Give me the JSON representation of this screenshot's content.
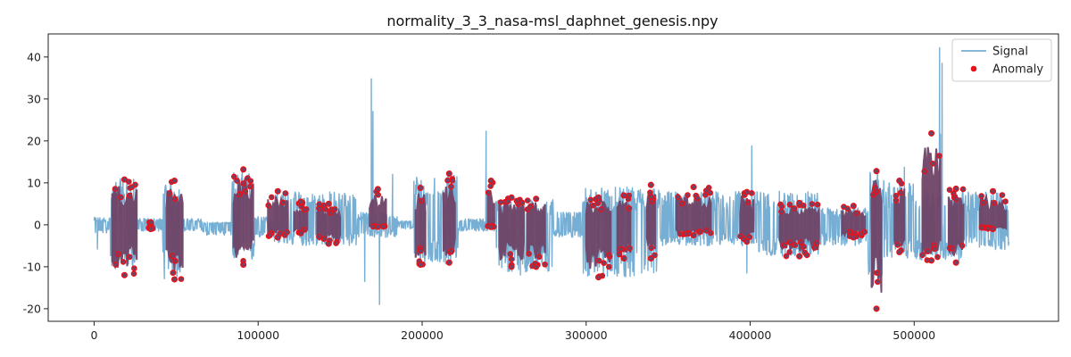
{
  "chart_data": {
    "type": "line",
    "title": "normality_3_3_nasa-msl_daphnet_genesis.npy",
    "xlabel": "",
    "ylabel": "",
    "xlim": [
      -28000,
      588000
    ],
    "ylim": [
      -23,
      45.5
    ],
    "x_ticks": [
      0,
      100000,
      200000,
      300000,
      400000,
      500000
    ],
    "y_ticks": [
      -20,
      -10,
      0,
      10,
      20,
      30,
      40
    ],
    "grid": false,
    "legend": {
      "position": "top-right",
      "entries": [
        "Signal",
        "Anomaly"
      ]
    },
    "series": [
      {
        "name": "Signal",
        "kind": "line",
        "color": "#77aed3",
        "segments": [
          {
            "start": 0,
            "end": 10000,
            "lo": -2,
            "hi": 1.8
          },
          {
            "start": 10000,
            "end": 26000,
            "lo": -10,
            "hi": 11
          },
          {
            "start": 26000,
            "end": 42000,
            "lo": -1.5,
            "hi": 1.5
          },
          {
            "start": 42000,
            "end": 54000,
            "lo": -13,
            "hi": 10.5
          },
          {
            "start": 54000,
            "end": 66000,
            "lo": -1.5,
            "hi": 1.5
          },
          {
            "start": 66000,
            "end": 84000,
            "lo": -2.5,
            "hi": 0.6
          },
          {
            "start": 84000,
            "end": 98000,
            "lo": -9,
            "hi": 13
          },
          {
            "start": 98000,
            "end": 110000,
            "lo": -3,
            "hi": 2
          },
          {
            "start": 110000,
            "end": 160000,
            "lo": -5,
            "hi": 8
          },
          {
            "start": 160000,
            "end": 185000,
            "lo": -3,
            "hi": 3
          },
          {
            "start": 185000,
            "end": 195000,
            "lo": -1,
            "hi": 1
          },
          {
            "start": 195000,
            "end": 222000,
            "lo": -9.5,
            "hi": 12
          },
          {
            "start": 222000,
            "end": 245000,
            "lo": -1.5,
            "hi": 1.5
          },
          {
            "start": 245000,
            "end": 280000,
            "lo": -12,
            "hi": 6
          },
          {
            "start": 280000,
            "end": 298000,
            "lo": -3,
            "hi": 3
          },
          {
            "start": 298000,
            "end": 345000,
            "lo": -12.5,
            "hi": 9
          },
          {
            "start": 345000,
            "end": 405000,
            "lo": -5,
            "hi": 8
          },
          {
            "start": 405000,
            "end": 442000,
            "lo": -7.5,
            "hi": 8
          },
          {
            "start": 442000,
            "end": 472000,
            "lo": -5,
            "hi": 4
          },
          {
            "start": 472000,
            "end": 482000,
            "lo": -13,
            "hi": 12.5
          },
          {
            "start": 482000,
            "end": 500000,
            "lo": -8,
            "hi": 10
          },
          {
            "start": 500000,
            "end": 530000,
            "lo": -8.5,
            "hi": 8.5
          },
          {
            "start": 530000,
            "end": 558000,
            "lo": -6,
            "hi": 8
          }
        ],
        "spikes": [
          {
            "x": 2000,
            "y": -5.8
          },
          {
            "x": 169000,
            "y": 34.8
          },
          {
            "x": 170000,
            "y": 27
          },
          {
            "x": 165000,
            "y": -13.5
          },
          {
            "x": 174000,
            "y": -19
          },
          {
            "x": 182000,
            "y": 12
          },
          {
            "x": 239000,
            "y": 22.3
          },
          {
            "x": 401000,
            "y": 18.8
          },
          {
            "x": 398000,
            "y": -11.5
          },
          {
            "x": 494000,
            "y": 13.7
          },
          {
            "x": 515500,
            "y": 42.2
          },
          {
            "x": 517000,
            "y": 38.5
          },
          {
            "x": 516000,
            "y": 21.6
          },
          {
            "x": 547000,
            "y": 7
          }
        ]
      },
      {
        "name": "Anomaly",
        "kind": "scatter",
        "color": "#e8121a",
        "edge_color": "#e8121a",
        "fill_color": "#6f4467",
        "ranges": [
          {
            "start": 11000,
            "end": 26000,
            "lo": -12,
            "hi": 10.8
          },
          {
            "start": 33000,
            "end": 36000,
            "lo": -1,
            "hi": 0.6
          },
          {
            "start": 44000,
            "end": 54000,
            "lo": -13,
            "hi": 10.5
          },
          {
            "start": 85000,
            "end": 97000,
            "lo": -9.5,
            "hi": 13.2
          },
          {
            "start": 106000,
            "end": 118000,
            "lo": -3,
            "hi": 8
          },
          {
            "start": 122000,
            "end": 130000,
            "lo": -2,
            "hi": 5.5
          },
          {
            "start": 136000,
            "end": 150000,
            "lo": -4.5,
            "hi": 5
          },
          {
            "start": 168000,
            "end": 178000,
            "lo": -0.5,
            "hi": 8.5
          },
          {
            "start": 196000,
            "end": 202000,
            "lo": -9.5,
            "hi": 8.8
          },
          {
            "start": 213000,
            "end": 220000,
            "lo": -9,
            "hi": 12.2
          },
          {
            "start": 240000,
            "end": 244000,
            "lo": -0.5,
            "hi": 10.5
          },
          {
            "start": 247000,
            "end": 262000,
            "lo": -10,
            "hi": 6.5
          },
          {
            "start": 264000,
            "end": 275000,
            "lo": -10,
            "hi": 6.2
          },
          {
            "start": 300000,
            "end": 315000,
            "lo": -12.5,
            "hi": 6.5
          },
          {
            "start": 319000,
            "end": 327000,
            "lo": -8,
            "hi": 7
          },
          {
            "start": 337000,
            "end": 342000,
            "lo": -8,
            "hi": 9.5
          },
          {
            "start": 355000,
            "end": 376000,
            "lo": -2.5,
            "hi": 9
          },
          {
            "start": 394000,
            "end": 402000,
            "lo": -4,
            "hi": 7.8
          },
          {
            "start": 418000,
            "end": 442000,
            "lo": -7.5,
            "hi": 5.2
          },
          {
            "start": 456000,
            "end": 470000,
            "lo": -3,
            "hi": 4.5
          },
          {
            "start": 474000,
            "end": 480000,
            "lo": -20,
            "hi": 12.8
          },
          {
            "start": 488000,
            "end": 494000,
            "lo": -6.5,
            "hi": 10.5
          },
          {
            "start": 505000,
            "end": 516000,
            "lo": -8.5,
            "hi": 21.8
          },
          {
            "start": 521000,
            "end": 530000,
            "lo": -9,
            "hi": 8.6
          },
          {
            "start": 540000,
            "end": 556000,
            "lo": -1,
            "hi": 8
          }
        ]
      }
    ]
  }
}
